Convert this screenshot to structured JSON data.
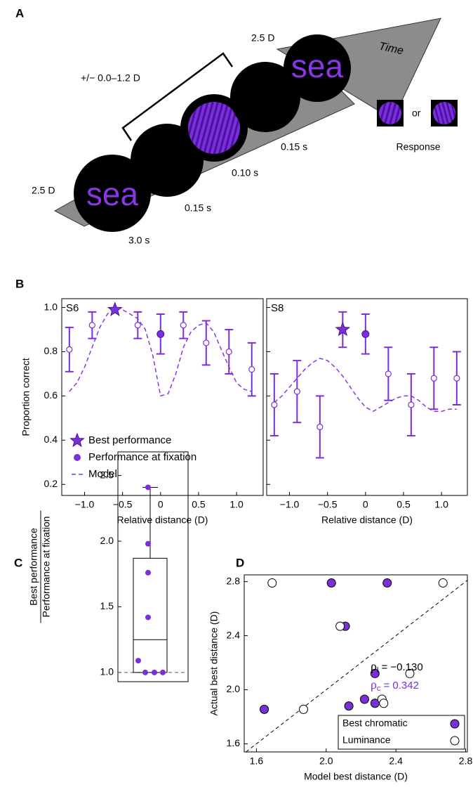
{
  "panels": [
    "A",
    "B",
    "C",
    "D"
  ],
  "diagram": {
    "time": "Time",
    "word": "sea",
    "start_distance": "2.5 D",
    "end_distance": "2.5 D",
    "range": "+/− 0.0–1.2 D",
    "durations": [
      "3.0 s",
      "0.15 s",
      "0.10 s",
      "0.15 s"
    ],
    "or": "or",
    "response": "Response"
  },
  "chart_data": [
    {
      "type": "errorbar",
      "label": "S6",
      "xlabel": "Relative distance (D)",
      "ylabel": "Proportion correct",
      "xlim": [
        -1.3,
        1.35
      ],
      "ylim": [
        0.15,
        1.04
      ],
      "xticks": [
        {
          "value": -1,
          "label": "−1.0"
        },
        {
          "value": -0.5,
          "label": "−0.5"
        },
        0,
        0.5,
        {
          "value": 1,
          "label": "1.0"
        }
      ],
      "yticks": [
        0.2,
        0.4,
        0.6,
        0.8,
        {
          "value": 1,
          "label": "1.0"
        }
      ],
      "legend": "lower left",
      "series": [
        {
          "name": "Best performance",
          "marker": "star",
          "color": "#7b2fd9",
          "x": [
            -0.6
          ],
          "values": [
            0.99
          ]
        },
        {
          "name": "Performance at fixation",
          "marker": "filled",
          "color": "#7b2fd9",
          "x": [
            0
          ],
          "values": [
            0.88
          ],
          "errors": [
            0.09
          ]
        },
        {
          "name": "Model",
          "marker": "dashed",
          "color": "#8a35e6",
          "x": [
            -1.2,
            -1.1,
            -1.0,
            -0.9,
            -0.8,
            -0.7,
            -0.6,
            -0.5,
            -0.4,
            -0.3,
            -0.2,
            -0.1,
            0,
            0.1,
            0.2,
            0.3,
            0.4,
            0.5,
            0.6,
            0.7,
            0.8,
            0.9,
            1.0,
            1.1,
            1.2
          ],
          "values": [
            0.62,
            0.66,
            0.73,
            0.82,
            0.91,
            0.97,
            1.0,
            0.99,
            0.97,
            0.95,
            0.9,
            0.78,
            0.6,
            0.61,
            0.7,
            0.82,
            0.89,
            0.92,
            0.93,
            0.89,
            0.81,
            0.73,
            0.66,
            0.63,
            0.62
          ]
        },
        {
          "marker": "open",
          "color": "#7b2fd9",
          "x": [
            -1.2,
            -0.9,
            -0.3,
            0.3,
            0.6,
            0.9,
            1.2
          ],
          "values": [
            0.81,
            0.92,
            0.92,
            0.92,
            0.84,
            0.8,
            0.72
          ],
          "errors": [
            0.1,
            0.06,
            0.06,
            0.06,
            0.1,
            0.1,
            0.12
          ]
        }
      ]
    },
    {
      "type": "errorbar",
      "label": "S8",
      "xlabel": "Relative distance (D)",
      "xlim": [
        -1.3,
        1.34
      ],
      "ylim": [
        0.15,
        1.04
      ],
      "xticks": [
        {
          "value": -1,
          "label": "−1.0"
        },
        {
          "value": -0.5,
          "label": "−0.5"
        },
        0,
        0.5,
        {
          "value": 1,
          "label": "1.0"
        }
      ],
      "yticks": [
        0.2,
        0.4,
        0.6,
        0.8,
        1
      ],
      "ytick_labels": false,
      "series": [
        {
          "marker": "star",
          "color": "#7b2fd9",
          "x": [
            -0.3
          ],
          "values": [
            0.9
          ],
          "errors": [
            0.08
          ]
        },
        {
          "marker": "filled",
          "color": "#7b2fd9",
          "x": [
            0
          ],
          "values": [
            0.88
          ],
          "errors": [
            0.09
          ]
        },
        {
          "marker": "dashed",
          "color": "#8a35e6",
          "x": [
            -1.2,
            -1.1,
            -1.0,
            -0.9,
            -0.8,
            -0.7,
            -0.6,
            -0.5,
            -0.4,
            -0.3,
            -0.2,
            -0.1,
            0,
            0.1,
            0.2,
            0.3,
            0.4,
            0.5,
            0.6,
            0.7,
            0.8,
            0.9,
            1.0,
            1.1,
            1.2
          ],
          "values": [
            0.57,
            0.6,
            0.64,
            0.68,
            0.72,
            0.75,
            0.77,
            0.76,
            0.73,
            0.69,
            0.64,
            0.59,
            0.55,
            0.53,
            0.55,
            0.57,
            0.59,
            0.6,
            0.6,
            0.58,
            0.55,
            0.53,
            0.53,
            0.54,
            0.54
          ]
        },
        {
          "marker": "open",
          "color": "#7b2fd9",
          "x": [
            -1.2,
            -0.9,
            -0.6,
            0.3,
            0.6,
            0.9,
            1.2
          ],
          "values": [
            0.56,
            0.62,
            0.46,
            0.7,
            0.56,
            0.68,
            0.68
          ],
          "errors": [
            0.14,
            0.14,
            0.14,
            0.12,
            0.14,
            0.14,
            0.12
          ]
        }
      ]
    },
    {
      "type": "box",
      "ylabel": [
        "Best performance",
        "Performance at fixation"
      ],
      "ylim": [
        0.93,
        2.68
      ],
      "yticks": [
        {
          "value": 1,
          "label": "1.0"
        },
        1.5,
        {
          "value": 2,
          "label": "2.0"
        },
        2.5
      ],
      "box": {
        "min": 1.0,
        "q1": 1.0,
        "median": 1.25,
        "q3": 1.87,
        "max": 2.41
      },
      "values": [
        2.41,
        1.98,
        1.76,
        1.42,
        1.09,
        1.0,
        1.0,
        1.0
      ],
      "color": "#7b2fd9",
      "reference": 1
    },
    {
      "type": "scatter",
      "xlabel": "Model best distance (D)",
      "ylabel": "Actual best distance (D)",
      "xlim": [
        1.53,
        2.81
      ],
      "ylim": [
        1.54,
        2.85
      ],
      "xticks": [
        1.6,
        {
          "value": 2,
          "label": "2.0"
        },
        2.4,
        2.8
      ],
      "yticks": [
        1.6,
        {
          "value": 2,
          "label": "2.0"
        },
        2.4,
        2.8
      ],
      "diagonal": true,
      "legend": "lower right",
      "series": [
        {
          "name": "Best chromatic",
          "color": "#7b2fd9",
          "filled": true,
          "x": [
            1.645,
            2.03,
            2.35,
            2.11,
            2.28,
            2.13,
            2.22,
            2.28
          ],
          "values": [
            1.855,
            2.79,
            2.79,
            2.47,
            2.12,
            1.88,
            1.93,
            1.9
          ]
        },
        {
          "name": "Luminance",
          "color": "#000000",
          "filled": false,
          "x": [
            1.69,
            2.67,
            2.08,
            2.48,
            1.87,
            2.32,
            2.33
          ],
          "values": [
            2.79,
            2.79,
            2.47,
            2.12,
            1.855,
            1.93,
            1.9
          ]
        }
      ],
      "annotations": [
        {
          "symbol": "ρ",
          "sub": "l",
          "text": "= −0.130",
          "color": "#000000"
        },
        {
          "symbol": "ρ",
          "sub": "c",
          "text": "= 0.342",
          "color": "#7b2fd9"
        }
      ]
    }
  ]
}
